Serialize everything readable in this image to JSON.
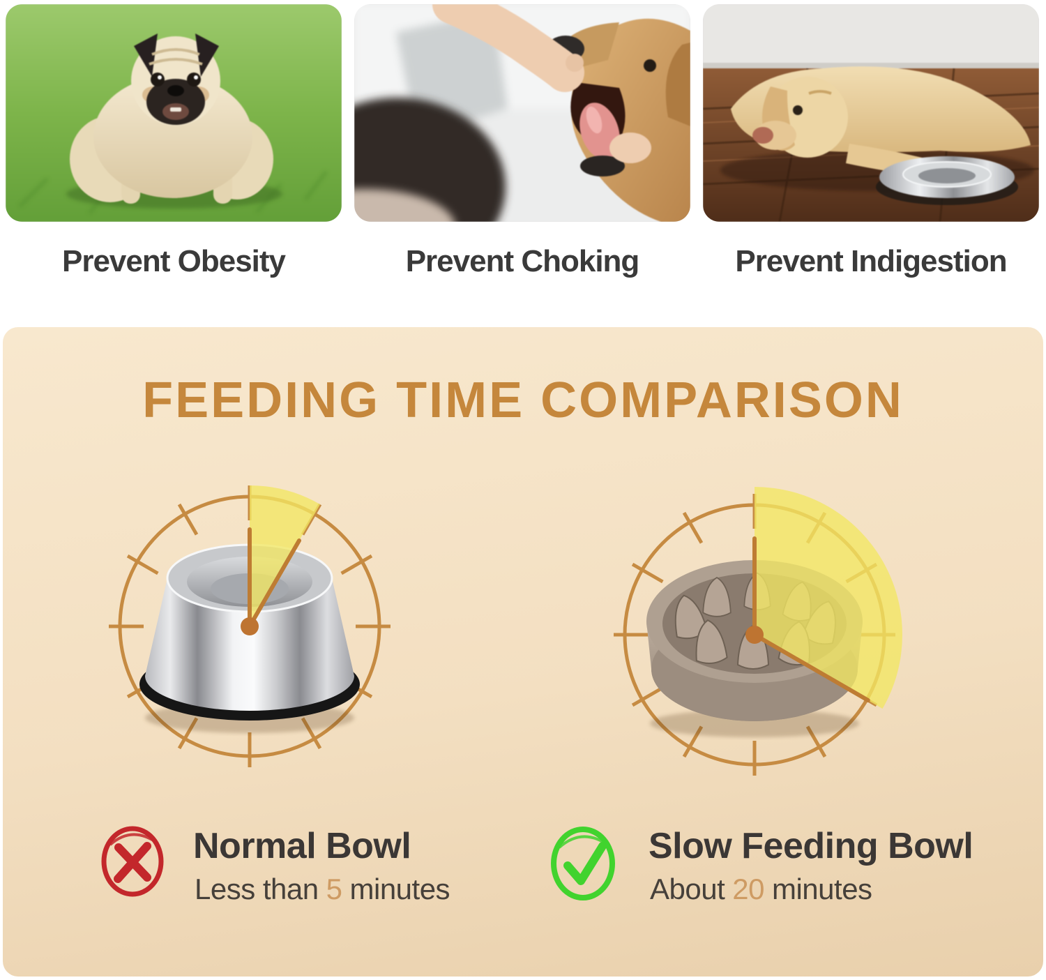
{
  "benefits": [
    {
      "caption": "Prevent Obesity",
      "image": "overweight-pug-on-grass"
    },
    {
      "caption": "Prevent Choking",
      "image": "hand-checking-dog-mouth"
    },
    {
      "caption": "Prevent Indigestion",
      "image": "tired-dog-lying-beside-bowl"
    }
  ],
  "comparison": {
    "title": "FEEDING TIME COMPARISON",
    "normal": {
      "label": "Normal Bowl",
      "time_prefix": "Less than",
      "time_value": "5",
      "time_suffix": "minutes",
      "minutes": 5,
      "verdict": "cross"
    },
    "slow": {
      "label": "Slow Feeding Bowl",
      "time_prefix": "About",
      "time_value": "20",
      "time_suffix": "minutes",
      "minutes": 20,
      "verdict": "check"
    }
  },
  "colors": {
    "panel_top": "#F8E8CE",
    "panel_bottom": "#E9D0AC",
    "title_brown": "#C5873C",
    "clock_stroke": "#C68B42",
    "hand_orange": "#BE7C33",
    "center_dot": "#BE7431",
    "wedge_yellow": "#F2E763",
    "number_tan": "#CE9B63",
    "cross_red": "#C3272B",
    "check_green": "#41D32E",
    "caption_dark": "#3A3A3A"
  }
}
